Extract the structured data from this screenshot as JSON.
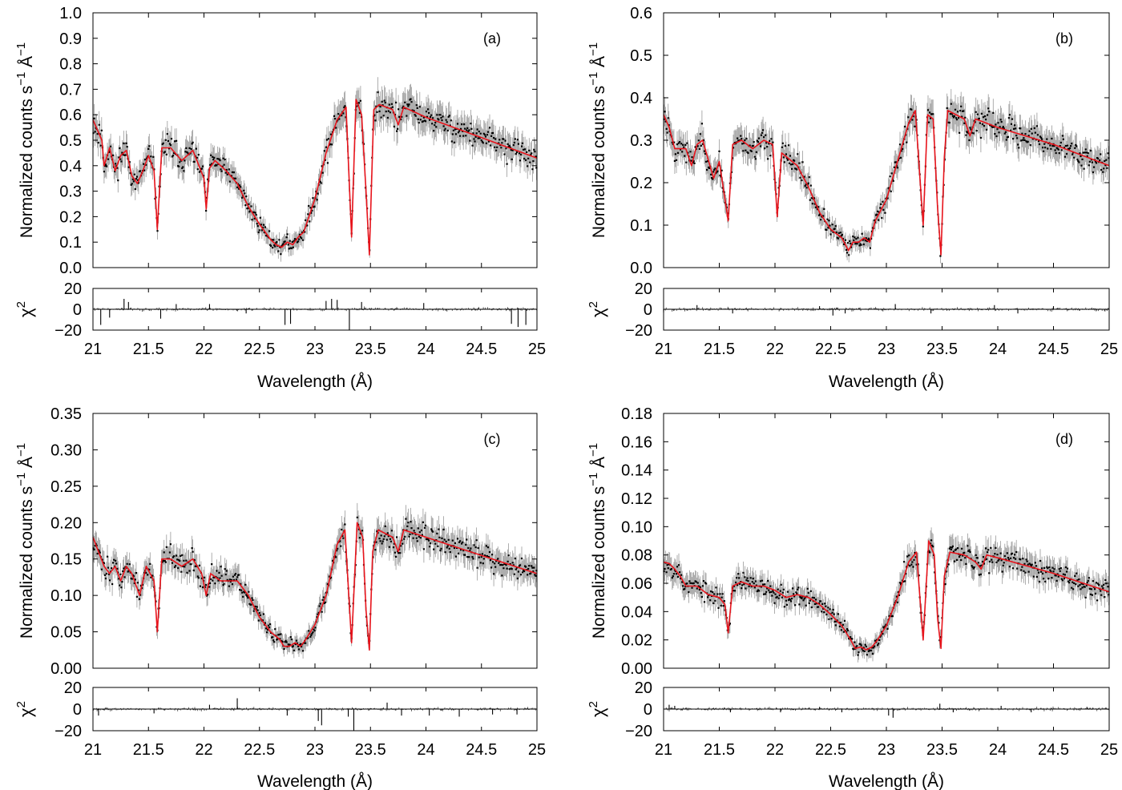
{
  "figure": {
    "ylabel_main": "Normalized counts s",
    "ylabel_exp1": "−1",
    "ylabel_unit": " Å",
    "ylabel_exp2": "−1",
    "ylabel_resid": "χ",
    "ylabel_resid_exp": "2",
    "xlabel": "Wavelength (Å)",
    "x_tick_labels": [
      "21",
      "21.5",
      "22",
      "22.5",
      "23",
      "23.5",
      "24",
      "24.5",
      "25"
    ],
    "resid_tick_labels": [
      "20",
      "0",
      "−20"
    ]
  },
  "chart_data": [
    {
      "type": "line",
      "panel": "(a)",
      "xlim": [
        21,
        25
      ],
      "ylim": [
        0.0,
        1.0
      ],
      "y_ticks": [
        "0.0",
        "0.1",
        "0.2",
        "0.3",
        "0.4",
        "0.5",
        "0.6",
        "0.7",
        "0.8",
        "0.9",
        "1.0"
      ],
      "resid_ylim": [
        -20,
        20
      ],
      "series": [
        {
          "name": "model",
          "color": "#e8141c",
          "x": [
            21.0,
            21.08,
            21.1,
            21.15,
            21.2,
            21.25,
            21.3,
            21.35,
            21.4,
            21.45,
            21.5,
            21.55,
            21.58,
            21.62,
            21.7,
            21.8,
            21.9,
            22.0,
            22.02,
            22.05,
            22.1,
            22.2,
            22.3,
            22.4,
            22.5,
            22.6,
            22.65,
            22.7,
            22.75,
            22.8,
            22.85,
            22.9,
            23.0,
            23.1,
            23.2,
            23.28,
            23.33,
            23.37,
            23.42,
            23.46,
            23.49,
            23.53,
            23.58,
            23.7,
            23.75,
            23.8,
            24.0,
            24.5,
            25.0
          ],
          "y": [
            0.58,
            0.5,
            0.4,
            0.47,
            0.38,
            0.44,
            0.46,
            0.36,
            0.33,
            0.38,
            0.44,
            0.38,
            0.15,
            0.47,
            0.47,
            0.42,
            0.46,
            0.35,
            0.23,
            0.39,
            0.42,
            0.38,
            0.33,
            0.24,
            0.17,
            0.11,
            0.09,
            0.08,
            0.1,
            0.09,
            0.12,
            0.14,
            0.27,
            0.45,
            0.58,
            0.63,
            0.12,
            0.66,
            0.6,
            0.3,
            0.05,
            0.62,
            0.64,
            0.62,
            0.56,
            0.63,
            0.59,
            0.51,
            0.43
          ]
        },
        {
          "name": "resid_spikes",
          "x": [
            21.07,
            21.15,
            21.28,
            21.32,
            21.61,
            21.75,
            22.05,
            22.38,
            22.73,
            22.78,
            23.1,
            23.15,
            23.2,
            23.31,
            23.42,
            23.98,
            24.77,
            24.83,
            24.9
          ],
          "y": [
            -15,
            -8,
            10,
            7,
            -9,
            5,
            5,
            -4,
            -15,
            -14,
            8,
            10,
            9,
            -22,
            7,
            6,
            -14,
            -17,
            -15
          ]
        }
      ]
    },
    {
      "type": "line",
      "panel": "(b)",
      "xlim": [
        21,
        25
      ],
      "ylim": [
        0.0,
        0.6
      ],
      "y_ticks": [
        "0.0",
        "0.1",
        "0.2",
        "0.3",
        "0.4",
        "0.5",
        "0.6"
      ],
      "resid_ylim": [
        -20,
        20
      ],
      "series": [
        {
          "name": "model",
          "color": "#e8141c",
          "x": [
            21.0,
            21.05,
            21.1,
            21.2,
            21.25,
            21.3,
            21.35,
            21.45,
            21.5,
            21.58,
            21.62,
            21.7,
            21.8,
            21.9,
            21.98,
            22.02,
            22.06,
            22.2,
            22.3,
            22.4,
            22.5,
            22.6,
            22.66,
            22.7,
            22.75,
            22.8,
            22.85,
            22.9,
            23.0,
            23.1,
            23.2,
            23.26,
            23.33,
            23.37,
            23.42,
            23.46,
            23.49,
            23.52,
            23.55,
            23.7,
            23.75,
            23.8,
            24.0,
            24.5,
            25.0
          ],
          "y": [
            0.36,
            0.33,
            0.28,
            0.28,
            0.24,
            0.29,
            0.3,
            0.21,
            0.25,
            0.11,
            0.29,
            0.3,
            0.28,
            0.3,
            0.29,
            0.12,
            0.27,
            0.24,
            0.19,
            0.13,
            0.09,
            0.07,
            0.04,
            0.06,
            0.06,
            0.07,
            0.06,
            0.11,
            0.16,
            0.25,
            0.34,
            0.37,
            0.1,
            0.36,
            0.35,
            0.14,
            0.03,
            0.26,
            0.37,
            0.35,
            0.31,
            0.35,
            0.33,
            0.29,
            0.24
          ]
        },
        {
          "name": "resid_spikes",
          "x": [
            21.0,
            21.3,
            21.62,
            22.4,
            22.52,
            22.63,
            23.08,
            23.4,
            23.97,
            24.18,
            24.5
          ],
          "y": [
            -3,
            4,
            -4,
            3,
            -6,
            -4,
            5,
            -4,
            4,
            -4,
            3
          ]
        }
      ]
    },
    {
      "type": "line",
      "panel": "(c)",
      "xlim": [
        21,
        25
      ],
      "ylim": [
        0.0,
        0.35
      ],
      "y_ticks": [
        "0.00",
        "0.05",
        "0.10",
        "0.15",
        "0.20",
        "0.25",
        "0.30",
        "0.35"
      ],
      "resid_ylim": [
        -20,
        20
      ],
      "series": [
        {
          "name": "model",
          "color": "#e8141c",
          "x": [
            21.0,
            21.05,
            21.1,
            21.15,
            21.2,
            21.25,
            21.3,
            21.35,
            21.42,
            21.48,
            21.55,
            21.58,
            21.62,
            21.7,
            21.8,
            21.9,
            21.98,
            22.02,
            22.06,
            22.15,
            22.3,
            22.4,
            22.5,
            22.6,
            22.68,
            22.72,
            22.77,
            22.82,
            22.87,
            22.92,
            23.0,
            23.1,
            23.2,
            23.27,
            23.33,
            23.38,
            23.43,
            23.46,
            23.49,
            23.52,
            23.57,
            23.7,
            23.75,
            23.8,
            24.0,
            24.5,
            25.0
          ],
          "y": [
            0.18,
            0.16,
            0.14,
            0.13,
            0.14,
            0.12,
            0.14,
            0.13,
            0.1,
            0.14,
            0.12,
            0.05,
            0.15,
            0.15,
            0.14,
            0.15,
            0.13,
            0.1,
            0.13,
            0.12,
            0.12,
            0.1,
            0.07,
            0.05,
            0.04,
            0.03,
            0.03,
            0.035,
            0.03,
            0.04,
            0.06,
            0.1,
            0.17,
            0.19,
            0.035,
            0.2,
            0.18,
            0.08,
            0.025,
            0.16,
            0.19,
            0.18,
            0.16,
            0.19,
            0.18,
            0.155,
            0.13
          ]
        },
        {
          "name": "resid_spikes",
          "x": [
            21.05,
            21.55,
            22.05,
            22.3,
            22.75,
            23.03,
            23.06,
            23.3,
            23.35,
            23.65,
            23.78,
            24.03,
            24.3,
            24.6,
            24.82
          ],
          "y": [
            -6,
            -4,
            4,
            10,
            -6,
            -11,
            -15,
            -7,
            -22,
            6,
            -6,
            -6,
            -7,
            -5,
            -5
          ]
        }
      ]
    },
    {
      "type": "line",
      "panel": "(d)",
      "xlim": [
        21,
        25
      ],
      "ylim": [
        0.0,
        0.18
      ],
      "y_ticks": [
        "0.00",
        "0.02",
        "0.04",
        "0.06",
        "0.08",
        "0.10",
        "0.12",
        "0.14",
        "0.16",
        "0.18"
      ],
      "resid_ylim": [
        -20,
        20
      ],
      "series": [
        {
          "name": "model",
          "color": "#e8141c",
          "x": [
            21.0,
            21.05,
            21.1,
            21.15,
            21.2,
            21.3,
            21.4,
            21.5,
            21.55,
            21.58,
            21.62,
            21.7,
            21.8,
            21.9,
            22.0,
            22.1,
            22.2,
            22.3,
            22.4,
            22.5,
            22.6,
            22.68,
            22.72,
            22.77,
            22.82,
            22.87,
            22.92,
            23.0,
            23.1,
            23.2,
            23.27,
            23.33,
            23.38,
            23.43,
            23.46,
            23.49,
            23.52,
            23.57,
            23.7,
            23.8,
            23.85,
            23.9,
            24.0,
            24.5,
            25.0
          ],
          "y": [
            0.075,
            0.074,
            0.07,
            0.065,
            0.058,
            0.058,
            0.052,
            0.05,
            0.045,
            0.025,
            0.058,
            0.061,
            0.058,
            0.058,
            0.055,
            0.05,
            0.052,
            0.05,
            0.045,
            0.038,
            0.03,
            0.02,
            0.014,
            0.015,
            0.013,
            0.015,
            0.02,
            0.03,
            0.05,
            0.075,
            0.082,
            0.02,
            0.09,
            0.08,
            0.035,
            0.014,
            0.065,
            0.082,
            0.08,
            0.075,
            0.07,
            0.08,
            0.078,
            0.067,
            0.054
          ]
        },
        {
          "name": "resid_spikes",
          "x": [
            21.05,
            21.1,
            21.6,
            22.05,
            22.4,
            22.6,
            23.02,
            23.06,
            23.48,
            23.6,
            24.03,
            24.3,
            24.8
          ],
          "y": [
            4,
            3,
            -3,
            -3,
            2,
            -3,
            -6,
            -8,
            5,
            -3,
            3,
            -3,
            2
          ]
        }
      ]
    }
  ]
}
